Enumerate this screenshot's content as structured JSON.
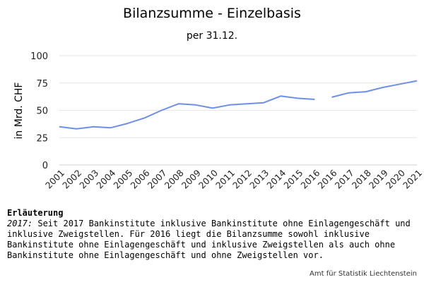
{
  "chart_data": {
    "type": "line",
    "title": "Bilanzsumme - Einzelbasis",
    "subtitle": "per 31.12.",
    "ylabel": "in Mrd. CHF",
    "xlabel": "",
    "ylim": [
      0,
      100
    ],
    "yticks": [
      0,
      25,
      50,
      75,
      100
    ],
    "categories": [
      "2001",
      "2002",
      "2003",
      "2004",
      "2005",
      "2006",
      "2007",
      "2008",
      "2009",
      "2010",
      "2011",
      "2012",
      "2013",
      "2014",
      "2015",
      "2016",
      "2016b",
      "2017",
      "2018",
      "2019",
      "2020",
      "2021"
    ],
    "x_tick_labels": [
      "2001",
      "2002",
      "2003",
      "2004",
      "2005",
      "2006",
      "2007",
      "2008",
      "2009",
      "2010",
      "2011",
      "2012",
      "2013",
      "2014",
      "2015",
      "2016",
      "2016",
      "2017",
      "2018",
      "2019",
      "2020",
      "2021"
    ],
    "grid": true,
    "series": [
      {
        "color": "#6d8fe8",
        "points": [
          {
            "x": "2001",
            "y": 35
          },
          {
            "x": "2002",
            "y": 33
          },
          {
            "x": "2003",
            "y": 35
          },
          {
            "x": "2004",
            "y": 34
          },
          {
            "x": "2005",
            "y": 38
          },
          {
            "x": "2006",
            "y": 43
          },
          {
            "x": "2007",
            "y": 50
          },
          {
            "x": "2008",
            "y": 56
          },
          {
            "x": "2009",
            "y": 55
          },
          {
            "x": "2010",
            "y": 52
          },
          {
            "x": "2011",
            "y": 55
          },
          {
            "x": "2012",
            "y": 56
          },
          {
            "x": "2013",
            "y": 57
          },
          {
            "x": "2014",
            "y": 63
          },
          {
            "x": "2015",
            "y": 61
          },
          {
            "x": "2016",
            "y": 60
          }
        ]
      },
      {
        "color": "#6d8fe8",
        "points": [
          {
            "x": "2016b",
            "y": 62
          },
          {
            "x": "2017",
            "y": 66
          },
          {
            "x": "2018",
            "y": 67
          },
          {
            "x": "2019",
            "y": 71
          },
          {
            "x": "2020",
            "y": 74
          },
          {
            "x": "2021",
            "y": 77
          }
        ]
      }
    ]
  },
  "notes": {
    "heading": "Erläuterung",
    "year": "2017:",
    "text": " Seit 2017 Bankinstitute inklusive Bankinstitute ohne Einlagengeschäft und inklusive Zweigstellen. Für 2016 liegt die Bilanzsumme sowohl inklusive Bankinstitute ohne Einlagengeschäft und inklusive Zweigstellen als auch ohne Bankinstitute ohne Einlagengeschäft und ohne Zweigstellen vor."
  },
  "credit": "Amt für Statistik Liechtenstein"
}
